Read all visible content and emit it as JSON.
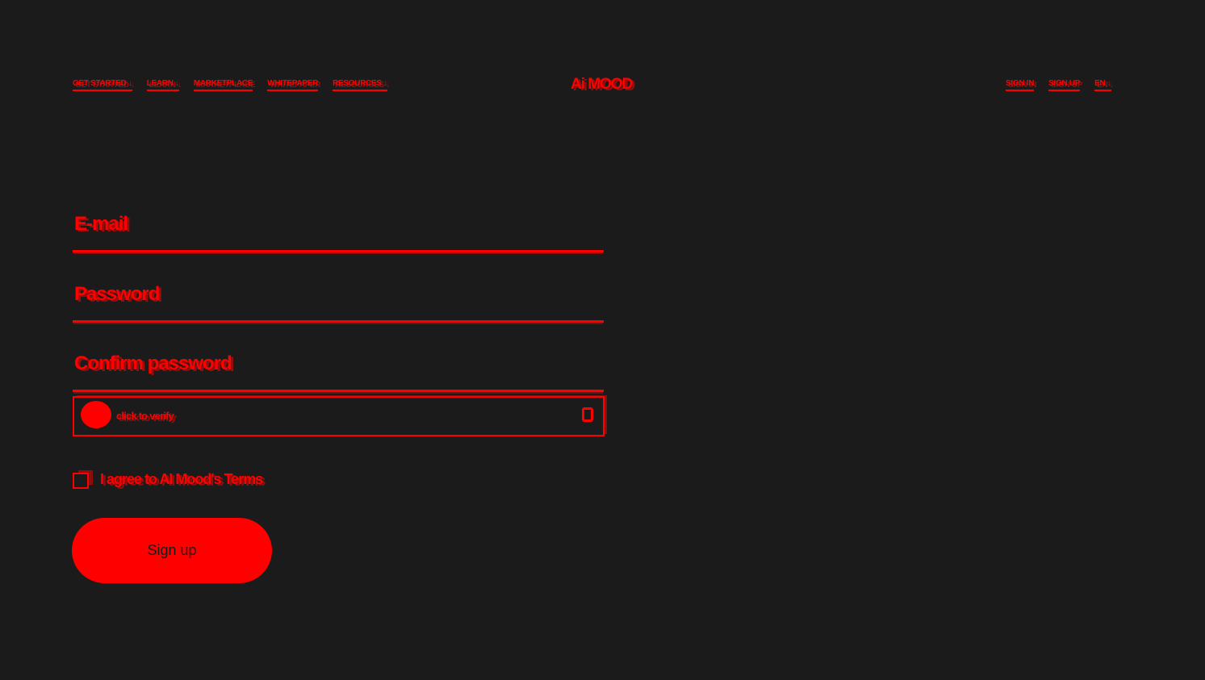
{
  "nav": {
    "left": [
      "GET STARTED ↓",
      "LEARN ↓",
      "MARKETPLACE",
      "WHITEPAPER",
      "RESOURCES ↓"
    ],
    "logo": "Ai MOOD",
    "right": [
      "SIGN IN",
      "SIGN UP",
      "EN ↓"
    ]
  },
  "form": {
    "fields": [
      "E-mail",
      "Password",
      "Confirm password"
    ],
    "captcha": "click to verify",
    "terms": "I agree to AI Mood's Terms",
    "button": "Sign up"
  }
}
